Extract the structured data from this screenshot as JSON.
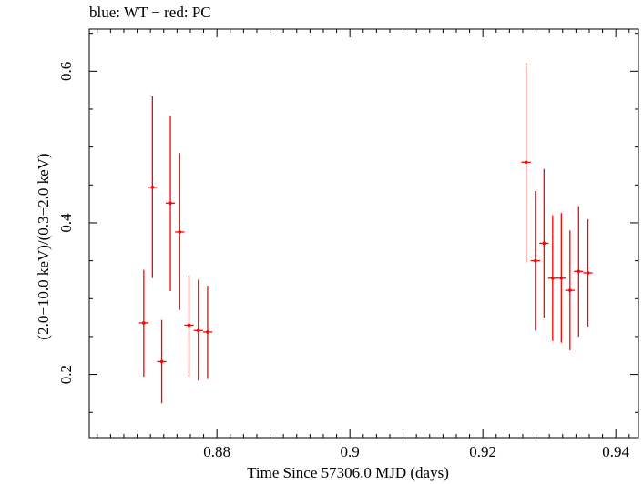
{
  "chart_data": {
    "type": "scatter",
    "title": "blue: WT − red: PC",
    "xlabel": "Time Since 57306.0 MJD (days)",
    "ylabel": "(2.0−10.0 keV)/(0.3−2.0 keV)",
    "xlim": [
      0.8608,
      0.9434
    ],
    "ylim": [
      0.1167,
      0.6556
    ],
    "xticks": [
      0.88,
      0.9,
      0.92,
      0.94
    ],
    "xtick_labels": [
      "0.88",
      "0.9",
      "0.92",
      "0.94"
    ],
    "yticks": [
      0.2,
      0.4,
      0.6
    ],
    "ytick_labels": [
      "0.2",
      "0.4",
      "0.6"
    ],
    "color": "#ff0000",
    "series": [
      {
        "points": [
          {
            "x": 0.869,
            "y": 0.268,
            "xerr": 0.0007,
            "ylo": 0.197,
            "yhi": 0.338
          },
          {
            "x": 0.8703,
            "y": 0.447,
            "xerr": 0.0007,
            "ylo": 0.327,
            "yhi": 0.567
          },
          {
            "x": 0.8717,
            "y": 0.217,
            "xerr": 0.0007,
            "ylo": 0.162,
            "yhi": 0.272
          },
          {
            "x": 0.873,
            "y": 0.426,
            "xerr": 0.0007,
            "ylo": 0.31,
            "yhi": 0.541
          },
          {
            "x": 0.8744,
            "y": 0.388,
            "xerr": 0.0007,
            "ylo": 0.285,
            "yhi": 0.492
          },
          {
            "x": 0.8758,
            "y": 0.265,
            "xerr": 0.0007,
            "ylo": 0.197,
            "yhi": 0.331
          },
          {
            "x": 0.8772,
            "y": 0.258,
            "xerr": 0.0007,
            "ylo": 0.192,
            "yhi": 0.325
          },
          {
            "x": 0.8786,
            "y": 0.256,
            "xerr": 0.0007,
            "ylo": 0.194,
            "yhi": 0.317
          },
          {
            "x": 0.9265,
            "y": 0.48,
            "xerr": 0.0007,
            "ylo": 0.348,
            "yhi": 0.611
          },
          {
            "x": 0.9279,
            "y": 0.35,
            "xerr": 0.0007,
            "ylo": 0.258,
            "yhi": 0.442
          },
          {
            "x": 0.9292,
            "y": 0.373,
            "xerr": 0.0007,
            "ylo": 0.275,
            "yhi": 0.471
          },
          {
            "x": 0.9305,
            "y": 0.327,
            "xerr": 0.0007,
            "ylo": 0.244,
            "yhi": 0.41
          },
          {
            "x": 0.9318,
            "y": 0.327,
            "xerr": 0.0007,
            "ylo": 0.242,
            "yhi": 0.413
          },
          {
            "x": 0.9331,
            "y": 0.311,
            "xerr": 0.0007,
            "ylo": 0.232,
            "yhi": 0.39
          },
          {
            "x": 0.9344,
            "y": 0.336,
            "xerr": 0.0007,
            "ylo": 0.25,
            "yhi": 0.422
          },
          {
            "x": 0.9358,
            "y": 0.334,
            "xerr": 0.0007,
            "ylo": 0.263,
            "yhi": 0.405
          }
        ]
      }
    ]
  }
}
